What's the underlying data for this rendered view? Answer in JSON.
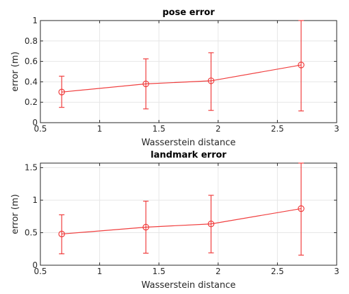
{
  "chart_data": [
    {
      "type": "line",
      "title": "pose error",
      "xlabel": "Wasserstein distance",
      "ylabel": "error (m)",
      "xlim": [
        0.5,
        3
      ],
      "ylim": [
        0,
        1
      ],
      "xticks": [
        0.5,
        1,
        1.5,
        2,
        2.5,
        3
      ],
      "xticklabels": [
        "0.5",
        "1",
        "1.5",
        "2",
        "2.5",
        "3"
      ],
      "yticks": [
        0,
        0.2,
        0.4,
        0.6,
        0.8,
        1
      ],
      "yticklabels": [
        "0",
        "0.2",
        "0.4",
        "0.6",
        "0.8",
        "1"
      ],
      "grid": true,
      "color": "#f03c3c",
      "series": [
        {
          "x": [
            0.68,
            1.39,
            1.94,
            2.7
          ],
          "y": [
            0.3,
            0.38,
            0.41,
            0.565
          ],
          "err_low": [
            0.15,
            0.135,
            0.12,
            0.115
          ],
          "err_high": [
            0.455,
            0.625,
            0.685,
            1.0
          ]
        }
      ]
    },
    {
      "type": "line",
      "title": "landmark error",
      "xlabel": "Wasserstein distance",
      "ylabel": "error (m)",
      "xlim": [
        0.5,
        3
      ],
      "ylim": [
        0,
        1.57
      ],
      "xticks": [
        0.5,
        1,
        1.5,
        2,
        2.5,
        3
      ],
      "xticklabels": [
        "0.5",
        "1",
        "1.5",
        "2",
        "2.5",
        "3"
      ],
      "yticks": [
        0,
        0.5,
        1,
        1.5
      ],
      "yticklabels": [
        "0",
        "0.5",
        "1",
        "1.5"
      ],
      "grid": true,
      "color": "#f03c3c",
      "series": [
        {
          "x": [
            0.68,
            1.39,
            1.94,
            2.7
          ],
          "y": [
            0.48,
            0.585,
            0.635,
            0.87
          ],
          "err_low": [
            0.175,
            0.185,
            0.19,
            0.155
          ],
          "err_high": [
            0.775,
            0.985,
            1.075,
            1.57
          ]
        }
      ]
    }
  ]
}
